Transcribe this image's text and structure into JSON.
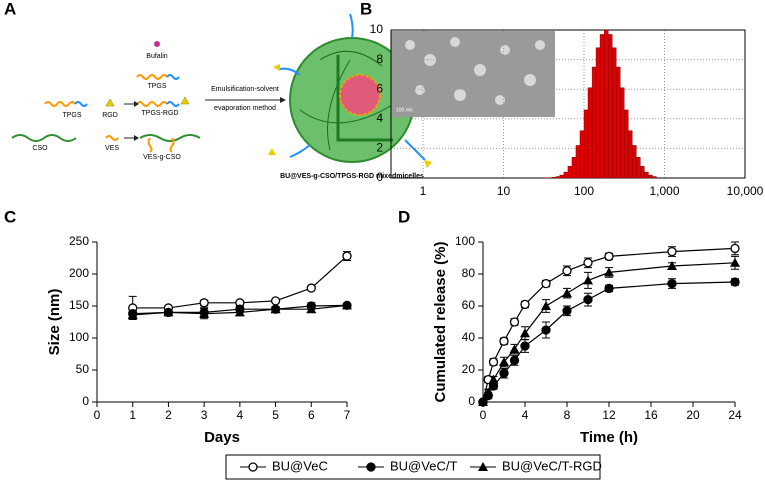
{
  "panel_labels": [
    "A",
    "B",
    "C",
    "D"
  ],
  "schematic": {
    "labels": [
      "Bufalin",
      "TPGS",
      "TPGS-RGD",
      "TPGS",
      "RGD",
      "CSO",
      "VES",
      "VES-g-CSO",
      "Emulsification-solvent",
      "evaporation method",
      "BU@VES-g-CSO/TPGS-RGD mixedmicelles"
    ],
    "inset_scale": "100 nm"
  },
  "legend": [
    "BU@VeC",
    "BU@VeC/T",
    "BU@VeC/T-RGD"
  ],
  "chart_data": [
    {
      "type": "histogram",
      "xscale": "log",
      "grid": true,
      "color": "#e00000",
      "bins": [
        25.1,
        28.2,
        31.6,
        35.5,
        39.8,
        44.7,
        50.1,
        56.2,
        63.1,
        70.8,
        79.4,
        89.1,
        100,
        112,
        126,
        141,
        158,
        178,
        200,
        224,
        251,
        282,
        316,
        355,
        398,
        447,
        501,
        562,
        631,
        708,
        794
      ],
      "counts": [
        0,
        0,
        0.01,
        0.02,
        0.05,
        0.1,
        0.2,
        0.4,
        0.8,
        1.4,
        2.2,
        3.2,
        4.6,
        6.1,
        7.5,
        8.8,
        9.7,
        10,
        9.7,
        8.8,
        7.5,
        6.1,
        4.6,
        3.2,
        2.2,
        1.4,
        0.8,
        0.4,
        0.2,
        0.1
      ],
      "xlim": [
        0.4,
        10000
      ],
      "xticks": [
        1,
        10,
        100,
        {
          "value": 1000,
          "label": "1,000"
        },
        {
          "value": 10000,
          "label": "10,000"
        }
      ],
      "ylim": [
        0,
        10
      ],
      "yticks": [
        0,
        2,
        4,
        6,
        8,
        10
      ]
    },
    {
      "type": "line",
      "xlabel": "Days",
      "ylabel": "Size (nm)",
      "x": [
        1,
        2,
        3,
        4,
        5,
        6,
        7
      ],
      "series": [
        {
          "marker": "open-circle",
          "color": "#000000",
          "values": [
            147,
            147,
            155,
            155,
            158,
            178,
            228
          ],
          "errors": [
            18,
            3,
            4,
            3,
            3,
            3,
            7
          ]
        },
        {
          "marker": "circle",
          "color": "#000000",
          "values": [
            138,
            140,
            140,
            145,
            145,
            150,
            151
          ],
          "errors": [
            5,
            3,
            8,
            5,
            4,
            5,
            3
          ]
        },
        {
          "marker": "triangle",
          "color": "#000000",
          "values": [
            136,
            140,
            138,
            140,
            145,
            145,
            151
          ],
          "errors": [
            5,
            3,
            8,
            5,
            4,
            5,
            3
          ]
        }
      ],
      "xlim": [
        0,
        7
      ],
      "xticks": [
        0,
        1,
        2,
        3,
        4,
        5,
        6,
        7
      ],
      "ylim": [
        0,
        250
      ],
      "yticks": [
        0,
        50,
        100,
        150,
        200,
        250
      ]
    },
    {
      "type": "line",
      "xlabel": "Time (h)",
      "ylabel": "Cumulated release (%)",
      "x": [
        0,
        0.5,
        1,
        2,
        3,
        4,
        6,
        8,
        10,
        12,
        18,
        24
      ],
      "series": [
        {
          "marker": "open-circle",
          "color": "#000000",
          "values": [
            0,
            14,
            25,
            38,
            50,
            61,
            74,
            82,
            87,
            91,
            94,
            96
          ],
          "errors": [
            1,
            2,
            2,
            2,
            2,
            2,
            2,
            3,
            3,
            2,
            3,
            4
          ]
        },
        {
          "marker": "circle",
          "color": "#000000",
          "values": [
            0,
            4,
            10,
            18,
            26,
            35,
            45,
            57,
            64,
            71,
            74,
            75
          ],
          "errors": [
            1,
            2,
            2,
            3,
            3,
            4,
            5,
            3,
            4,
            2,
            3,
            2
          ]
        },
        {
          "marker": "triangle",
          "color": "#000000",
          "values": [
            0,
            6,
            14,
            25,
            33,
            43,
            60,
            68,
            76,
            81,
            85,
            87
          ],
          "errors": [
            1,
            2,
            2,
            3,
            3,
            4,
            4,
            3,
            5,
            3,
            2,
            4
          ]
        }
      ],
      "xlim": [
        0,
        24
      ],
      "xticks": [
        0,
        4,
        8,
        12,
        16,
        20,
        24
      ],
      "ylim": [
        0,
        100
      ],
      "yticks": [
        0,
        20,
        40,
        60,
        80,
        100
      ]
    }
  ]
}
